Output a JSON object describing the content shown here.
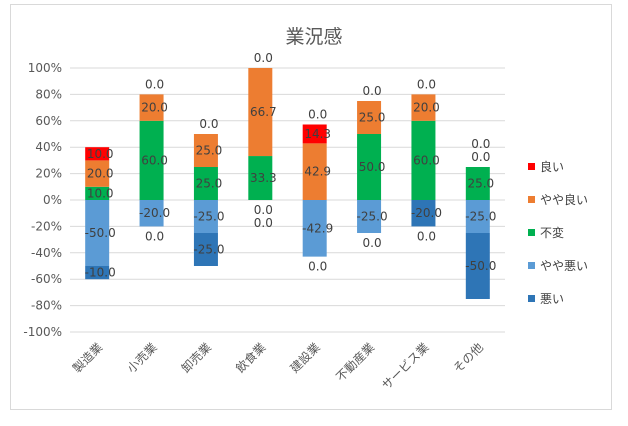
{
  "chart_data": {
    "type": "bar",
    "stacked": true,
    "title": "業況感",
    "categories": [
      "製造業",
      "小売業",
      "卸売業",
      "飲食業",
      "建設業",
      "不動産業",
      "サービス業",
      "その他"
    ],
    "ylim": [
      -100,
      100
    ],
    "yticks": [
      "-100%",
      "-80%",
      "-60%",
      "-40%",
      "-20%",
      "0%",
      "20%",
      "40%",
      "60%",
      "80%",
      "100%"
    ],
    "grid": true,
    "legend_position": "right",
    "series": [
      {
        "name": "良い",
        "color": "#ff0000",
        "sign": 1,
        "values": [
          10.0,
          0.0,
          0.0,
          0.0,
          14.3,
          0.0,
          0.0,
          0.0
        ]
      },
      {
        "name": "やや良い",
        "color": "#ed7d31",
        "sign": 1,
        "values": [
          20.0,
          20.0,
          25.0,
          66.7,
          42.9,
          25.0,
          20.0,
          0.0
        ]
      },
      {
        "name": "不変",
        "color": "#00b050",
        "sign": 1,
        "values": [
          10.0,
          60.0,
          25.0,
          33.3,
          0.0,
          50.0,
          60.0,
          25.0
        ]
      },
      {
        "name": "やや悪い",
        "color": "#5b9bd5",
        "sign": -1,
        "values": [
          -50.0,
          -20.0,
          -25.0,
          0.0,
          -42.9,
          -25.0,
          0.0,
          -25.0
        ]
      },
      {
        "name": "悪い",
        "color": "#2e75b6",
        "sign": -1,
        "values": [
          -10.0,
          0.0,
          -25.0,
          0.0,
          0.0,
          0.0,
          -20.0,
          -50.0
        ]
      }
    ]
  }
}
